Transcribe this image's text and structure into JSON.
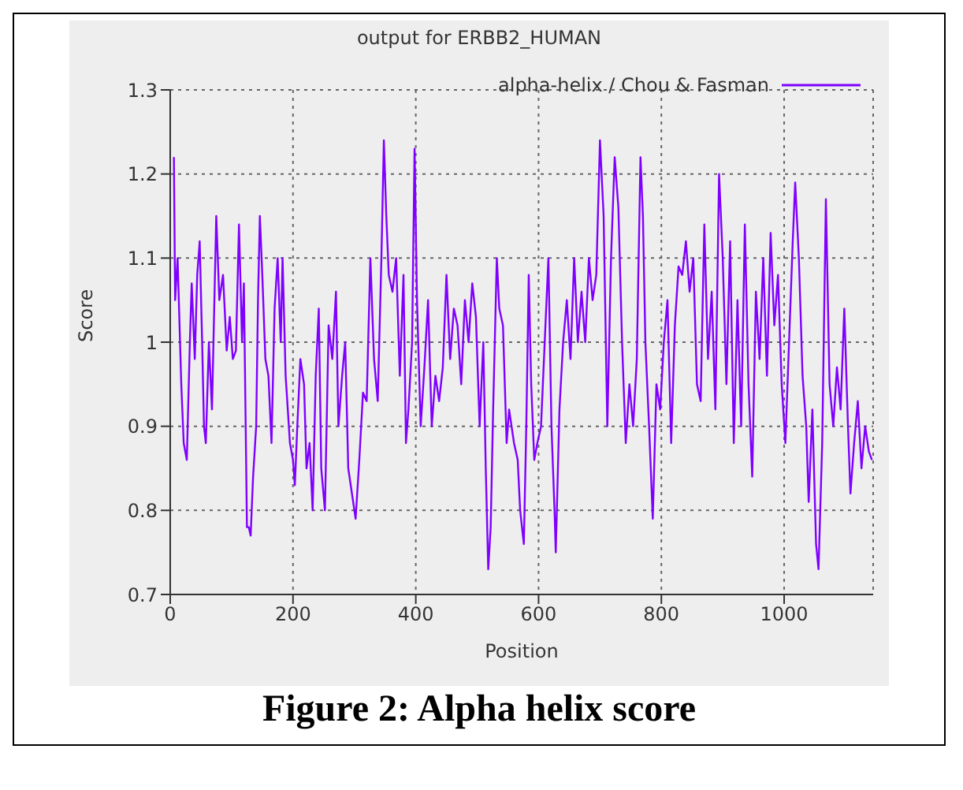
{
  "chart_data": {
    "type": "line",
    "title": "output for ERBB2_HUMAN",
    "xlabel": "Position",
    "ylabel": "Score",
    "annotations": [
      "Figure 2: Alpha helix score"
    ],
    "x": [
      6,
      8,
      12,
      18,
      22,
      27,
      32,
      35,
      40,
      44,
      48,
      52,
      55,
      58,
      63,
      68,
      75,
      80,
      86,
      92,
      97,
      102,
      107,
      112,
      117,
      120,
      125,
      128,
      131,
      135,
      140,
      143,
      146,
      150,
      155,
      160,
      165,
      170,
      175,
      180,
      183,
      188,
      195,
      200,
      203,
      207,
      212,
      218,
      222,
      227,
      232,
      237,
      242,
      246,
      252,
      258,
      264,
      270,
      274,
      280,
      285,
      290,
      296,
      302,
      308,
      314,
      320,
      326,
      332,
      338,
      344,
      348,
      352,
      356,
      362,
      368,
      374,
      380,
      384,
      388,
      394,
      398,
      402,
      408,
      414,
      420,
      426,
      432,
      438,
      444,
      450,
      456,
      462,
      468,
      474,
      480,
      486,
      492,
      498,
      504,
      510,
      514,
      518,
      522,
      526,
      532,
      536,
      542,
      548,
      552,
      560,
      566,
      570,
      576,
      580,
      584,
      588,
      593,
      598,
      604,
      610,
      616,
      621,
      626,
      628,
      634,
      640,
      646,
      652,
      658,
      664,
      670,
      676,
      682,
      688,
      694,
      700,
      706,
      712,
      718,
      724,
      730,
      736,
      742,
      748,
      754,
      760,
      766,
      770,
      774,
      780,
      786,
      792,
      798,
      804,
      810,
      816,
      822,
      828,
      834,
      840,
      846,
      852,
      858,
      864,
      870,
      876,
      882,
      888,
      894,
      900,
      906,
      912,
      918,
      924,
      930,
      936,
      942,
      948,
      954,
      960,
      966,
      972,
      978,
      984,
      990,
      996,
      1002,
      1008,
      1014,
      1018,
      1024,
      1030,
      1036,
      1040,
      1046,
      1052,
      1056,
      1062,
      1068,
      1074,
      1080,
      1086,
      1092,
      1098,
      1104,
      1108,
      1114,
      1120,
      1126,
      1132,
      1138,
      1143
    ],
    "series": [
      {
        "name": "alpha-helix / Chou & Fasman",
        "color": "#7f00ff",
        "values": [
          1.22,
          1.05,
          1.1,
          0.95,
          0.88,
          0.86,
          1.0,
          1.07,
          0.98,
          1.08,
          1.12,
          1.0,
          0.9,
          0.88,
          1.0,
          0.92,
          1.15,
          1.05,
          1.08,
          0.99,
          1.03,
          0.98,
          0.99,
          1.14,
          1.0,
          1.07,
          0.78,
          0.78,
          0.77,
          0.84,
          0.9,
          1.05,
          1.15,
          1.08,
          0.98,
          0.96,
          0.88,
          1.04,
          1.1,
          1.0,
          1.1,
          0.96,
          0.88,
          0.86,
          0.83,
          0.9,
          0.98,
          0.95,
          0.85,
          0.88,
          0.8,
          0.96,
          1.04,
          0.85,
          0.8,
          1.02,
          0.98,
          1.06,
          0.9,
          0.96,
          1.0,
          0.85,
          0.82,
          0.79,
          0.86,
          0.94,
          0.93,
          1.1,
          0.98,
          0.93,
          1.1,
          1.24,
          1.15,
          1.08,
          1.06,
          1.1,
          0.96,
          1.08,
          0.88,
          0.92,
          1.0,
          1.23,
          1.05,
          0.9,
          0.97,
          1.05,
          0.9,
          0.96,
          0.93,
          0.97,
          1.08,
          0.98,
          1.04,
          1.02,
          0.95,
          1.05,
          1.0,
          1.07,
          1.03,
          0.9,
          1.0,
          0.85,
          0.73,
          0.78,
          0.92,
          1.1,
          1.04,
          1.02,
          0.88,
          0.92,
          0.88,
          0.86,
          0.8,
          0.76,
          0.9,
          1.08,
          0.95,
          0.86,
          0.88,
          0.9,
          1.0,
          1.1,
          0.9,
          0.8,
          0.75,
          0.92,
          1.0,
          1.05,
          0.98,
          1.1,
          1.0,
          1.06,
          1.0,
          1.1,
          1.05,
          1.08,
          1.24,
          1.15,
          0.9,
          1.1,
          1.22,
          1.16,
          1.0,
          0.88,
          0.95,
          0.9,
          0.98,
          1.22,
          1.15,
          1.0,
          0.9,
          0.79,
          0.95,
          0.92,
          1.0,
          1.05,
          0.88,
          1.02,
          1.09,
          1.08,
          1.12,
          1.06,
          1.1,
          0.95,
          0.93,
          1.14,
          0.98,
          1.06,
          0.92,
          1.2,
          1.1,
          0.95,
          1.12,
          0.88,
          1.05,
          0.9,
          1.14,
          0.95,
          0.84,
          1.06,
          0.98,
          1.1,
          0.96,
          1.13,
          1.02,
          1.08,
          0.95,
          0.88,
          1.0,
          1.12,
          1.19,
          1.1,
          0.96,
          0.9,
          0.81,
          0.92,
          0.76,
          0.73,
          0.88,
          1.17,
          0.95,
          0.9,
          0.97,
          0.92,
          1.04,
          0.9,
          0.82,
          0.88,
          0.93,
          0.85,
          0.9,
          0.87,
          0.86
        ]
      }
    ],
    "xlim": [
      0,
      1145
    ],
    "xticks": [
      0,
      200,
      400,
      600,
      800,
      1000
    ],
    "ylim": [
      0.7,
      1.3
    ],
    "yticks": [
      0.7,
      0.8,
      0.9,
      1,
      1.1,
      1.2,
      1.3
    ],
    "grid": true,
    "legend": "top right",
    "marker": "none",
    "line_style": "solid"
  }
}
